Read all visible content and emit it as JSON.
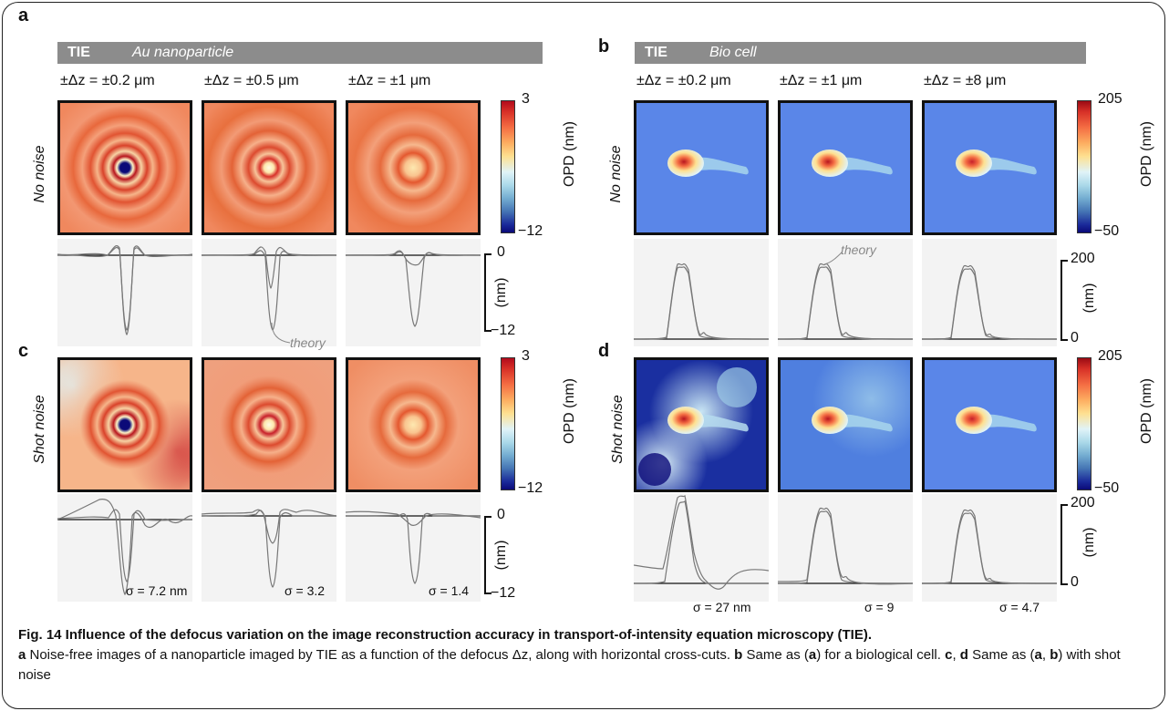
{
  "figure": {
    "panels": {
      "a": {
        "label": "a",
        "method": "TIE",
        "sample": "Au nanoparticle",
        "defocus": [
          "±Δz = ±0.2 μm",
          "±Δz = ±0.5 μm",
          "±Δz = ±1 μm"
        ],
        "row_label": "No noise",
        "cbar_max": "3",
        "cbar_min": "−12",
        "cbar_unit": "OPD  (nm)",
        "prof_top": "0",
        "prof_bottom": "−12",
        "prof_unit": "(nm)",
        "theory": "theory"
      },
      "b": {
        "label": "b",
        "method": "TIE",
        "sample": "Bio cell",
        "defocus": [
          "±Δz = ±0.2 μm",
          "±Δz = ±1 μm",
          "±Δz = ±8 μm"
        ],
        "row_label": "No noise",
        "cbar_max": "205",
        "cbar_min": "−50",
        "cbar_unit": "OPD  (nm)",
        "prof_top": "200",
        "prof_bottom": "0",
        "prof_unit": "(nm)",
        "theory": "theory"
      },
      "c": {
        "label": "c",
        "row_label": "Shot noise",
        "cbar_max": "3",
        "cbar_min": "−12",
        "cbar_unit": "OPD  (nm)",
        "prof_top": "0",
        "prof_bottom": "−12",
        "prof_unit": "(nm)",
        "sigmas": [
          "σ = 7.2 nm",
          "σ = 3.2",
          "σ = 1.4"
        ]
      },
      "d": {
        "label": "d",
        "row_label": "Shot noise",
        "cbar_max": "205",
        "cbar_min": "−50",
        "cbar_unit": "OPD  (nm)",
        "prof_top": "200",
        "prof_bottom": "0",
        "prof_unit": "(nm)",
        "sigmas": [
          "σ = 27 nm",
          "σ = 9",
          "σ = 4.7"
        ]
      }
    }
  },
  "caption": {
    "title": "Fig. 14 Influence of the defocus variation on the image reconstruction accuracy in transport-of-intensity equation microscopy (TIE).",
    "a": "a",
    "a_text": " Noise-free images of a nanoparticle imaged by TIE as a function of the defocus Δz, along with horizontal cross-cuts. ",
    "b": "b",
    "b_text": " Same as (",
    "b_ref": "a",
    "b_text2": ") for a biological cell. ",
    "c": "c",
    "cd_sep": ", ",
    "d": "d",
    "d_text": " Same as (",
    "d_ref1": "a",
    "d_sep": ", ",
    "d_ref2": "b",
    "d_text2": ") with shot noise"
  },
  "colors": {
    "header": "#8c8c8c",
    "bio_background": "#5a86e8",
    "au_background": "#f0885e",
    "profile_bg": "#f3f3f3",
    "curve": "#777777"
  }
}
